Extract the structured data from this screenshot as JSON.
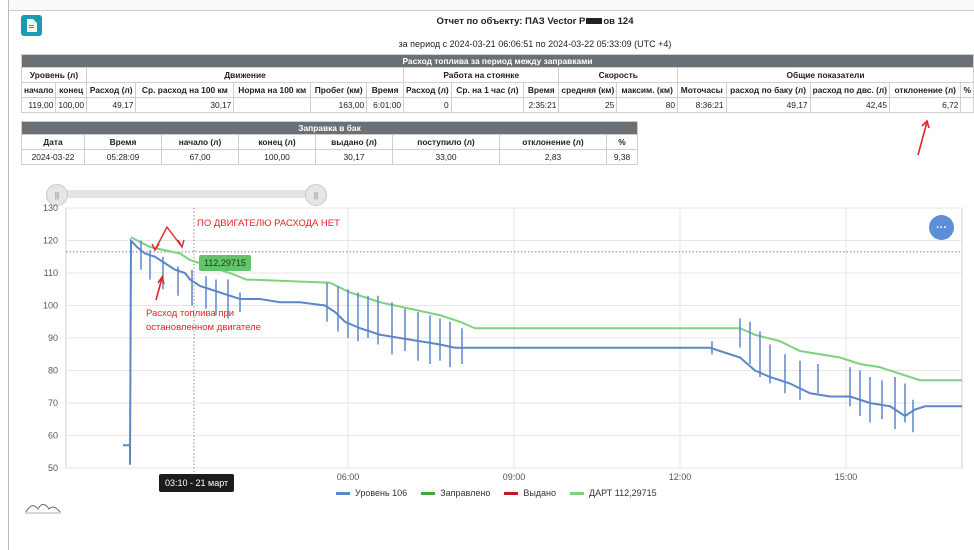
{
  "report": {
    "title": "Отчет по объекту: ПАЗ Vector Р",
    "title_suffix": "ов 124",
    "period": "за период с 2024-03-21 06:06:51 по 2024-03-22 05:33:09 (UTC +4)"
  },
  "table1": {
    "section": "Расход топлива за период между заправками",
    "groups": [
      "Уровень (л)",
      "Движение",
      "Работа на стоянке",
      "Скорость",
      "Общие показатели"
    ],
    "headers": [
      "начало",
      "конец",
      "Расход (л)",
      "Ср. расход на 100 км",
      "Норма на 100 км",
      "Пробег (км)",
      "Время",
      "Расход (л)",
      "Ср. на 1 час (л)",
      "Время",
      "средняя (км)",
      "максим. (км)",
      "Моточасы",
      "расход по баку (л)",
      "расход по двс. (л)",
      "отклонение (л)",
      "%"
    ],
    "values": [
      "119,00",
      "100,00",
      "49,17",
      "30,17",
      "",
      "163,00",
      "6:01:00",
      "0",
      "",
      "2:35:21",
      "25",
      "80",
      "8:36:21",
      "49,17",
      "42,45",
      "6,72",
      ""
    ]
  },
  "table2": {
    "section": "Заправка в бак",
    "headers": [
      "Дата",
      "Время",
      "начало (л)",
      "конец (л)",
      "выдано (л)",
      "поступило (л)",
      "отклонение (л)",
      "%"
    ],
    "values": [
      "2024-03-22",
      "05:28:09",
      "67,00",
      "100,00",
      "30,17",
      "33,00",
      "2,83",
      "9,38"
    ]
  },
  "chart_data": {
    "type": "line",
    "y_ticks": [
      "130",
      "120",
      "110",
      "100",
      "90",
      "80",
      "70",
      "60",
      "50"
    ],
    "x_ticks": [
      "06:00",
      "09:00",
      "12:00",
      "15:00"
    ],
    "ylim": [
      50,
      130
    ],
    "reference_line": 116.5,
    "series": [
      {
        "name": "Уровень 106",
        "color": "#5b87c9"
      },
      {
        "name": "Заправлено",
        "color": "#3ea83e"
      },
      {
        "name": "Выдано",
        "color": "#c0182a"
      },
      {
        "name": "ДАРТ 112,29715",
        "color": "#7fd17f"
      }
    ],
    "tooltip_value": "112,29715",
    "tooltip_time": "03:10 - 21 март"
  },
  "annotations": {
    "top": "ПО ДВИГАТЕЛЮ РАСХОДА НЕТ",
    "left": "Расход топлива при остановленном двигателе"
  },
  "fab_label": "···",
  "slider": {
    "handle_glyph": "||"
  }
}
